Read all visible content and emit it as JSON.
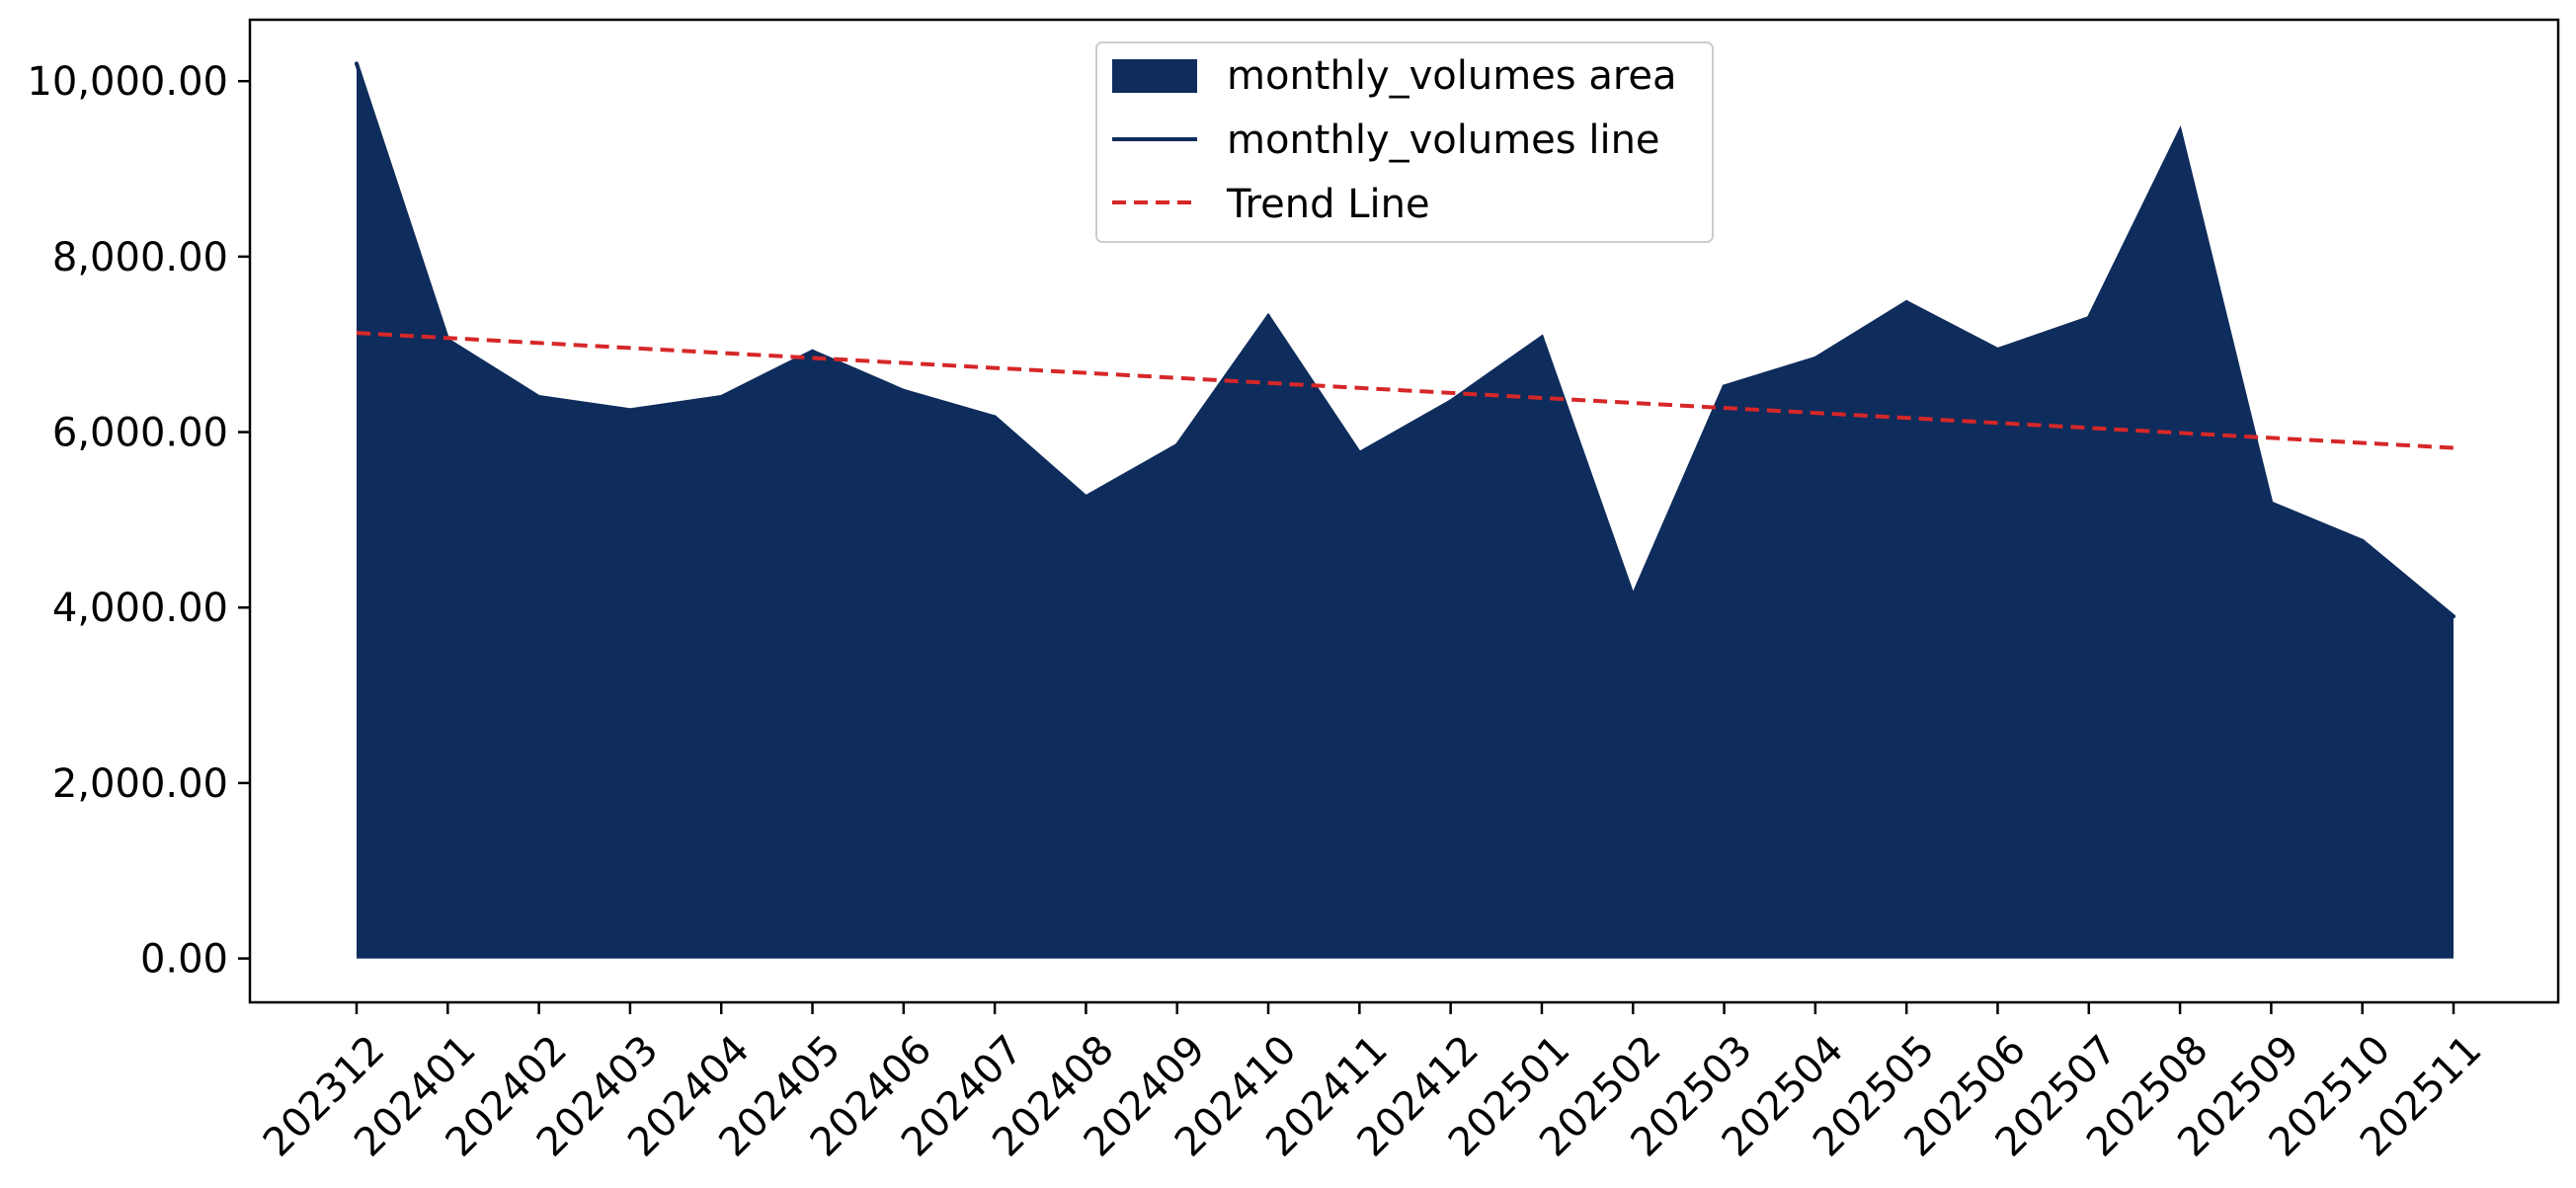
{
  "chart_data": {
    "type": "area",
    "title": "",
    "xlabel": "",
    "ylabel": "",
    "categories": [
      "202312",
      "202401",
      "202402",
      "202403",
      "202404",
      "202405",
      "202406",
      "202407",
      "202408",
      "202409",
      "202410",
      "202411",
      "202412",
      "202501",
      "202502",
      "202503",
      "202504",
      "202505",
      "202506",
      "202507",
      "202508",
      "202509",
      "202510",
      "202511"
    ],
    "series": [
      {
        "name": "monthly_volumes",
        "area_label": "monthly_volumes area",
        "line_label": "monthly_volumes line",
        "color": "#0e2c5c",
        "values": [
          10200,
          7050,
          6400,
          6250,
          6400,
          6920,
          6470,
          6170,
          5260,
          5850,
          7320,
          5760,
          6350,
          7080,
          4130,
          6520,
          6840,
          7480,
          6940,
          7300,
          9430,
          5190,
          4760,
          3900
        ]
      }
    ],
    "trend": {
      "name": "Trend Line",
      "color": "#d62728",
      "start": 7130,
      "end": 5820
    },
    "ylim": [
      -500,
      10700
    ],
    "yticks": [
      0,
      2000,
      4000,
      6000,
      8000,
      10000
    ],
    "ytick_labels": [
      "0.00",
      "2,000.00",
      "4,000.00",
      "6,000.00",
      "8,000.00",
      "10,000.00"
    ],
    "legend": {
      "position": "top-center",
      "entries": [
        "monthly_volumes area",
        "monthly_volumes line",
        "Trend Line"
      ]
    },
    "grid": false
  }
}
